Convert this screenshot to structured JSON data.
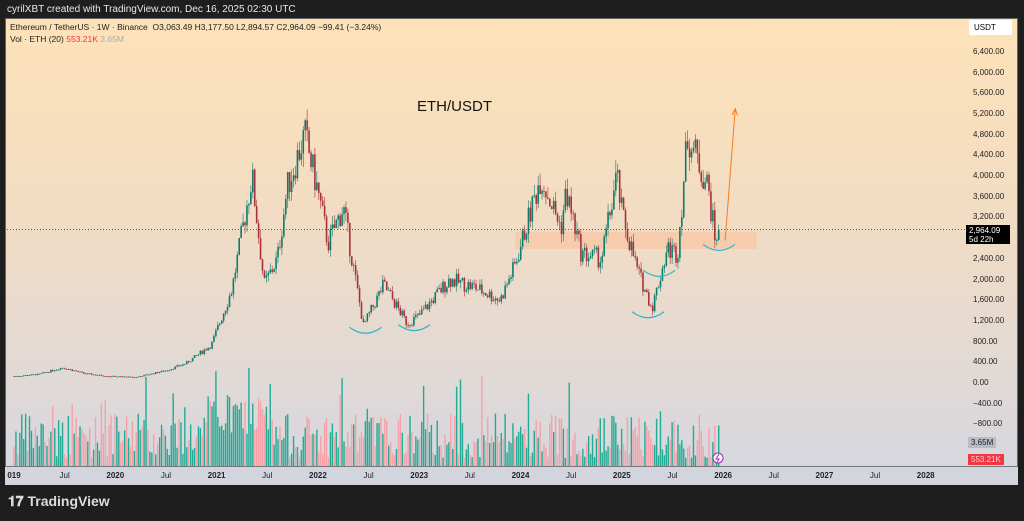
{
  "header": {
    "attribution": "cyrilXBT created with TradingView.com, Dec 16, 2025 02:30 UTC"
  },
  "legend": {
    "symbol": "Ethereum / TetherUS · 1W · Binance",
    "ohlc": "O3,063.49  H3,177.50  L2,894.57  C2,964.09  −99.41 (−3.24%)",
    "vol_label": "Vol · ETH (20)",
    "vol_value": "553.21K",
    "vol_ma": "3.65M"
  },
  "axis": {
    "unit": "USDT",
    "last_price": "2,964.09",
    "countdown": "5d 22h",
    "vol_ma_badge": "3.65M",
    "vol_badge": "553.21K"
  },
  "annotation_title": "ETH/USDT",
  "footer": {
    "brand": "TradingView"
  },
  "colors": {
    "up": "#0b7d6c",
    "down": "#a8323b",
    "vol_up": "#22ab94",
    "vol_down": "#f7a0a8",
    "zone": "#f7c9a8",
    "arrow": "#f57c22",
    "arc": "#2ab6c9"
  },
  "chart_data": {
    "type": "candlestick",
    "interval": "1W",
    "ylim": [
      -800,
      6400
    ],
    "y_ticks": [
      "6,400.00",
      "6,000.00",
      "5,600.00",
      "5,200.00",
      "4,800.00",
      "4,400.00",
      "4,000.00",
      "3,600.00",
      "3,200.00",
      "2,400.00",
      "2,000.00",
      "1,600.00",
      "1,200.00",
      "800.00",
      "400.00",
      "0.00",
      "−400.00",
      "−800.00"
    ],
    "y_tick_values": [
      6400,
      6000,
      5600,
      5200,
      4800,
      4400,
      4000,
      3600,
      3200,
      2400,
      2000,
      1600,
      1200,
      800,
      400,
      0,
      -400,
      -800
    ],
    "x_ticks": [
      "019",
      "Jul",
      "2020",
      "Jul",
      "2021",
      "Jul",
      "2022",
      "Jul",
      "2023",
      "Jul",
      "2024",
      "Jul",
      "2025",
      "Jul",
      "2026",
      "Jul",
      "2027",
      "Jul",
      "2028"
    ],
    "x_tick_dates": [
      2019.0,
      2019.5,
      2020.0,
      2020.5,
      2021.0,
      2021.5,
      2022.0,
      2022.5,
      2023.0,
      2023.5,
      2024.0,
      2024.5,
      2025.0,
      2025.5,
      2026.0,
      2026.5,
      2027.0,
      2027.5,
      2028.0
    ],
    "price_path": [
      [
        2019.0,
        130
      ],
      [
        2019.25,
        170
      ],
      [
        2019.48,
        300
      ],
      [
        2019.7,
        180
      ],
      [
        2019.95,
        130
      ],
      [
        2020.2,
        110
      ],
      [
        2020.5,
        240
      ],
      [
        2020.7,
        380
      ],
      [
        2020.95,
        740
      ],
      [
        2021.15,
        1800
      ],
      [
        2021.35,
        4000
      ],
      [
        2021.47,
        1900
      ],
      [
        2021.6,
        2400
      ],
      [
        2021.7,
        3800
      ],
      [
        2021.87,
        4800
      ],
      [
        2022.0,
        3700
      ],
      [
        2022.1,
        2700
      ],
      [
        2022.25,
        3400
      ],
      [
        2022.45,
        1100
      ],
      [
        2022.6,
        1700
      ],
      [
        2022.65,
        1900
      ],
      [
        2022.88,
        1150
      ],
      [
        2023.0,
        1300
      ],
      [
        2023.3,
        2000
      ],
      [
        2023.55,
        1850
      ],
      [
        2023.8,
        1600
      ],
      [
        2023.95,
        2300
      ],
      [
        2024.2,
        4000
      ],
      [
        2024.4,
        3000
      ],
      [
        2024.45,
        3700
      ],
      [
        2024.6,
        2500
      ],
      [
        2024.8,
        2400
      ],
      [
        2024.95,
        4000
      ],
      [
        2025.0,
        3300
      ],
      [
        2025.15,
        2200
      ],
      [
        2025.3,
        1450
      ],
      [
        2025.45,
        2600
      ],
      [
        2025.55,
        2500
      ],
      [
        2025.65,
        4800
      ],
      [
        2025.75,
        4300
      ],
      [
        2025.85,
        3800
      ],
      [
        2025.92,
        2800
      ],
      [
        2025.96,
        2964
      ]
    ],
    "last_close": 2964.09,
    "zone": {
      "from": 2023.95,
      "to": 2026.33,
      "low": 2590,
      "high": 2920
    },
    "projection_arrow": {
      "from": [
        2026.02,
        2750
      ],
      "to": [
        2026.12,
        5300
      ]
    },
    "bottom_arcs": [
      [
        2022.47,
        1000
      ],
      [
        2022.95,
        1050
      ],
      [
        2025.26,
        1300
      ],
      [
        2025.37,
        2100
      ],
      [
        2025.96,
        2600
      ]
    ]
  }
}
